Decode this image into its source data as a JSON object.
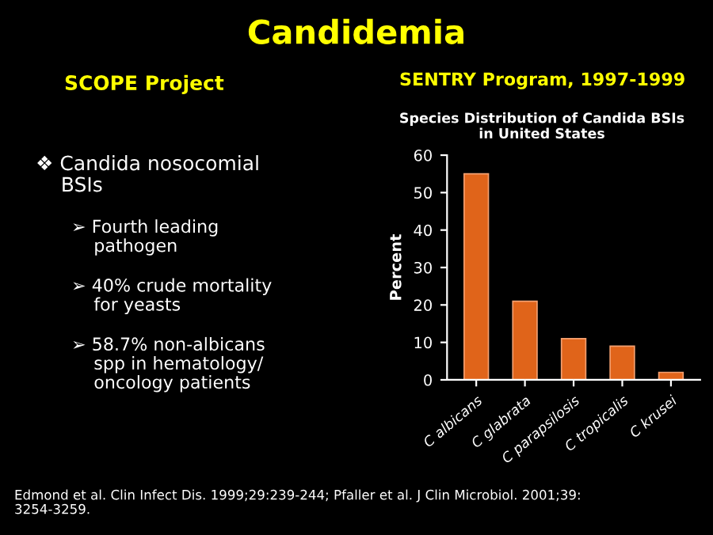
{
  "chart_data": {
    "type": "bar",
    "title": "Candidemia",
    "subtitle": "Species Distribution of Candida BSIs\nin United States",
    "ylabel": "Percent",
    "categories": [
      "C albicans",
      "C glabrata",
      "C parapsilosis",
      "C tropicalis",
      "C krusei"
    ],
    "values": [
      55,
      21,
      11,
      9,
      2
    ],
    "color": "#e0641a",
    "ylim": [
      0,
      60
    ],
    "yticks": [
      0,
      10,
      20,
      30,
      40,
      50,
      60
    ],
    "grid": false,
    "legend": false,
    "annotations": [
      "SCOPE Project",
      "SENTRY Program, 1997-1999",
      "❖ Candida nosocomial\n    BSIs",
      "➢ Fourth leading\n    pathogen",
      "➢ 40% crude mortality\n    for yeasts",
      "➢ 58.7% non-albicans\n    spp in hematology/\n    oncology patients",
      "Edmond et al. Clin Infect Dis. 1999;29:239-244; Pfaller et al. J Clin Microbiol. 2001;39:\n3254-3259."
    ]
  }
}
